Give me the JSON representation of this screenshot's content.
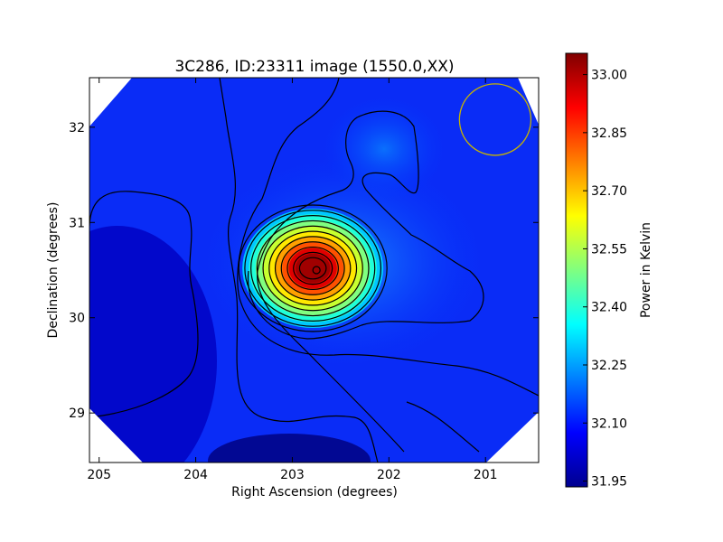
{
  "chart_data": {
    "type": "heatmap",
    "title": "3C286, ID:23311 image (1550.0,XX)",
    "xlabel": "Right Ascension (degrees)",
    "ylabel": "Declination (degrees)",
    "xlim": [
      205.1,
      200.45
    ],
    "ylim": [
      28.48,
      32.52
    ],
    "x_ticks": [
      205,
      204,
      203,
      202,
      201
    ],
    "x_tick_labels": [
      "205",
      "204",
      "203",
      "202",
      "201"
    ],
    "y_ticks": [
      29,
      30,
      31,
      32
    ],
    "y_tick_labels": [
      "29",
      "30",
      "31",
      "32"
    ],
    "colorbar": {
      "label": "Power in Kelvin",
      "range": [
        31.935,
        33.055
      ],
      "ticks": [
        31.95,
        32.1,
        32.25,
        32.4,
        32.55,
        32.7,
        32.85,
        33.0
      ],
      "tick_labels": [
        "31.95",
        "32.10",
        "32.25",
        "32.40",
        "32.55",
        "32.70",
        "32.85",
        "33.00"
      ],
      "colormap": "jet"
    },
    "peak": {
      "ra": 202.75,
      "dec": 30.5,
      "value": 33.05
    },
    "beam": {
      "ra": 200.9,
      "dec": 32.08,
      "radius_deg": 0.37,
      "color": "#c8b400"
    },
    "contours": {
      "color": "#000000"
    },
    "grid": false
  }
}
